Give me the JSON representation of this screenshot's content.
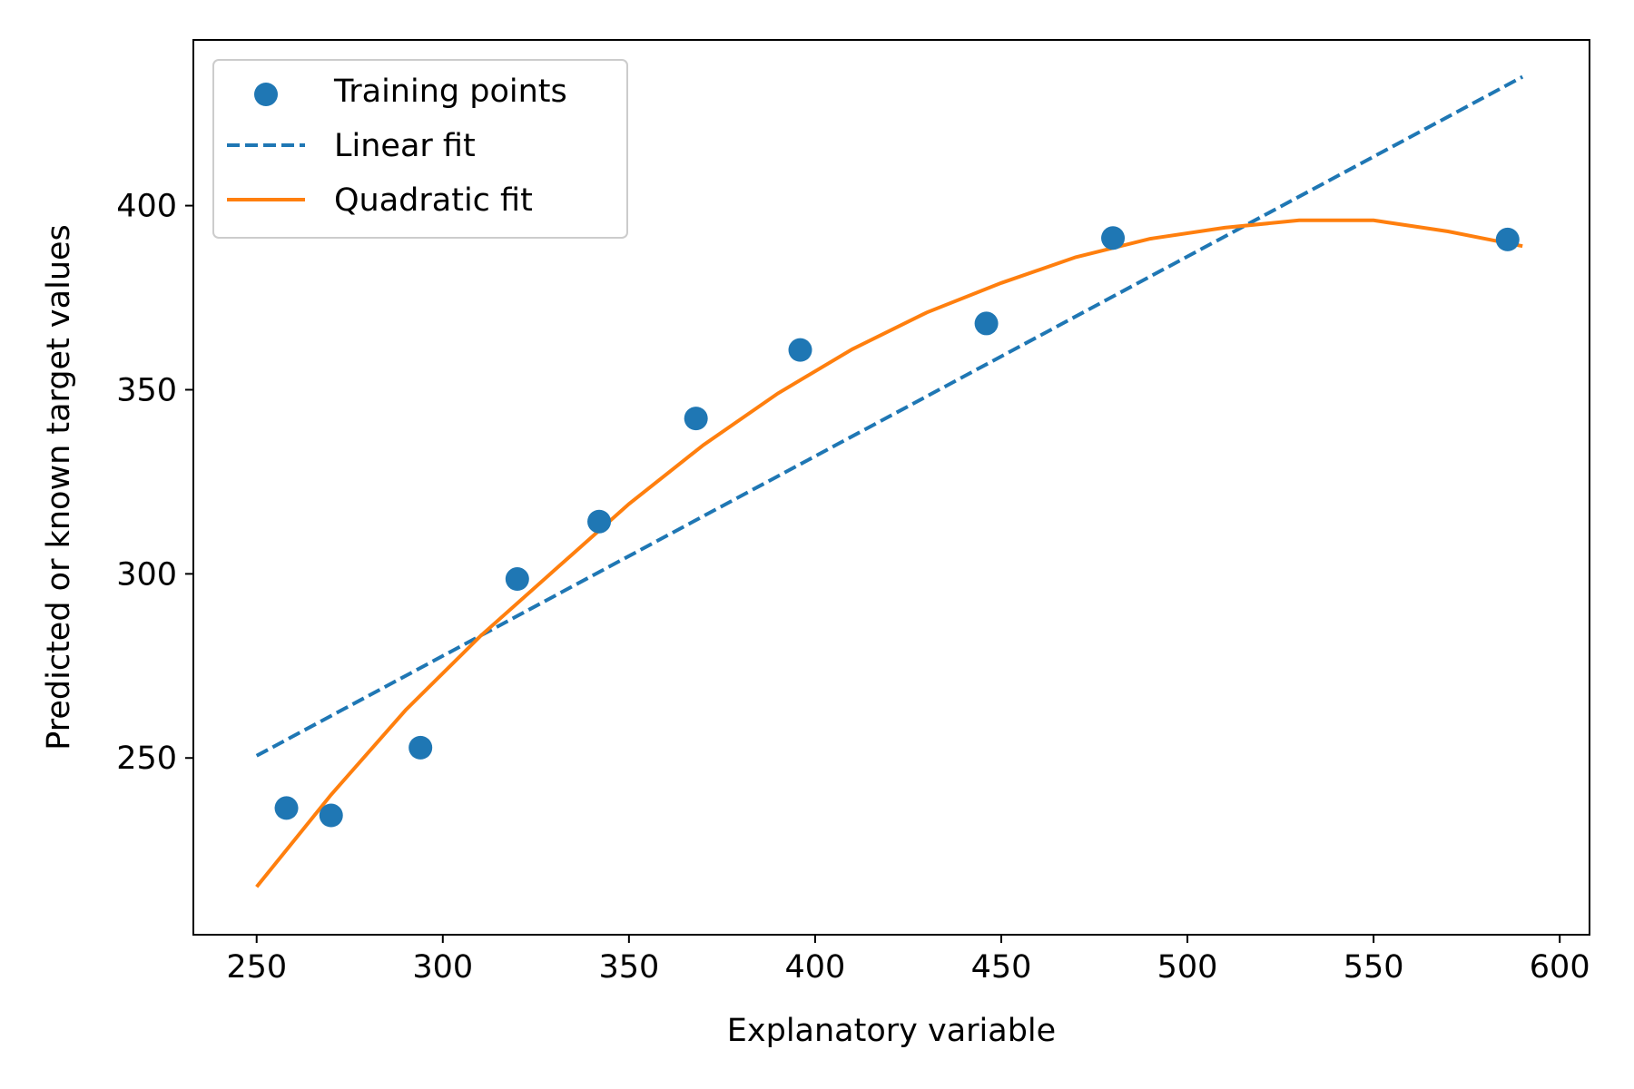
{
  "chart_data": {
    "type": "scatter",
    "title": "",
    "xlabel": "Explanatory variable",
    "ylabel": "Predicted or known target values",
    "xlim": [
      233,
      608
    ],
    "ylim": [
      202,
      445
    ],
    "xticks": [
      250,
      300,
      350,
      400,
      450,
      500,
      550,
      600
    ],
    "yticks": [
      250,
      300,
      350,
      400
    ],
    "grid": false,
    "legend_position": "top-left",
    "series": [
      {
        "name": "Training points",
        "kind": "scatter",
        "color": "#1f77b4",
        "points": [
          [
            258,
            236.4
          ],
          [
            270,
            234.4
          ],
          [
            294,
            252.8
          ],
          [
            320,
            298.6
          ],
          [
            342,
            314.2
          ],
          [
            368,
            342.2
          ],
          [
            396,
            360.8
          ],
          [
            446,
            368.0
          ],
          [
            480,
            391.2
          ],
          [
            586,
            390.8
          ]
        ]
      },
      {
        "name": "Linear fit",
        "kind": "line",
        "style": "dashed",
        "color": "#1f77b4",
        "points": [
          [
            250,
            250.6
          ],
          [
            590,
            435.0
          ]
        ]
      },
      {
        "name": "Quadratic fit",
        "kind": "line",
        "style": "solid",
        "color": "#ff7f0e",
        "points": [
          [
            250,
            215.0
          ],
          [
            270,
            240.0
          ],
          [
            290,
            263.0
          ],
          [
            310,
            283.0
          ],
          [
            330,
            301.0
          ],
          [
            350,
            319.0
          ],
          [
            370,
            335.0
          ],
          [
            390,
            349.0
          ],
          [
            410,
            361.0
          ],
          [
            430,
            371.0
          ],
          [
            450,
            379.0
          ],
          [
            470,
            386.0
          ],
          [
            490,
            391.0
          ],
          [
            510,
            394.0
          ],
          [
            530,
            396.0
          ],
          [
            550,
            396.0
          ],
          [
            570,
            393.0
          ],
          [
            590,
            389.0
          ]
        ]
      }
    ]
  }
}
